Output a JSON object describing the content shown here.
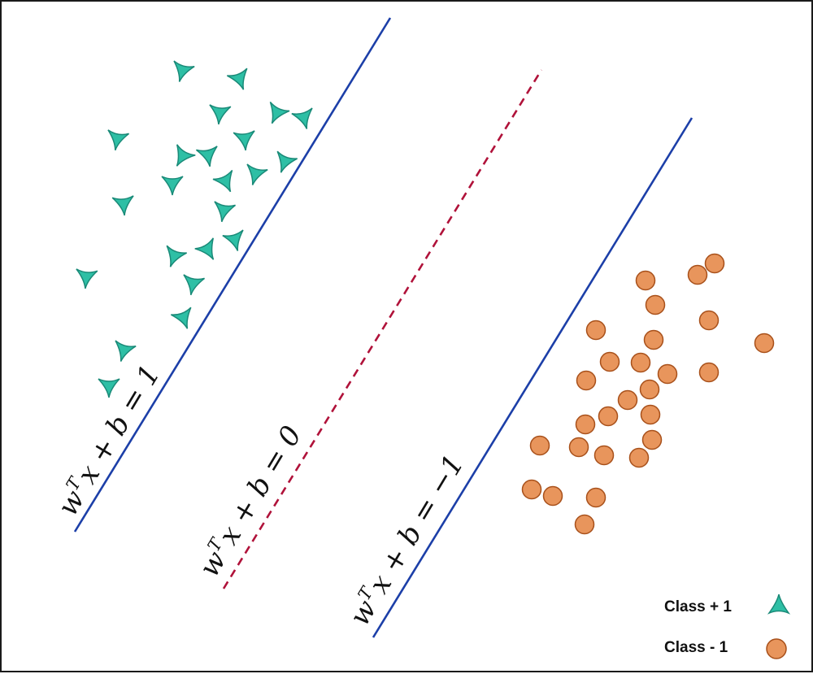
{
  "colors": {
    "class_pos_fill": "#2ebfa5",
    "class_pos_stroke": "#1a8a78",
    "class_neg_fill": "#e8955c",
    "class_neg_stroke": "#a8501a",
    "margin_line": "#1c3fa8",
    "decision_line": "#b0123a"
  },
  "equations": {
    "upper": {
      "w": "w",
      "T": "T",
      "rest": "x + b = 1"
    },
    "middle": {
      "w": "w",
      "T": "T",
      "rest": "x + b = 0"
    },
    "lower": {
      "w": "w",
      "T": "T",
      "rest": "x + b = −1"
    }
  },
  "legend": {
    "pos_label": "Class + 1",
    "neg_label": "Class - 1",
    "pos_icon": "triangle-icon",
    "neg_icon": "circle-icon"
  }
}
